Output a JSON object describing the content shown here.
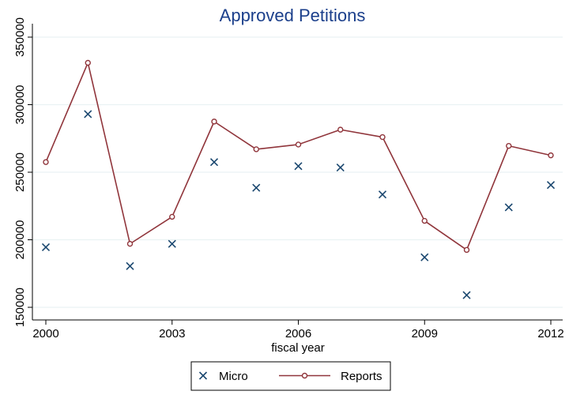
{
  "chart_data": {
    "type": "line",
    "title": "Approved Petitions",
    "xlabel": "fiscal year",
    "ylabel": "",
    "x": [
      2000,
      2001,
      2002,
      2003,
      2004,
      2005,
      2006,
      2007,
      2008,
      2009,
      2010,
      2011,
      2012
    ],
    "xticks": [
      "2000",
      "2003",
      "2006",
      "2009",
      "2012"
    ],
    "yticks": [
      "150000",
      "200000",
      "250000",
      "300000",
      "350000"
    ],
    "xlim": [
      2000,
      2012
    ],
    "ylim": [
      150000,
      350000
    ],
    "grid": true,
    "legend_position": "bottom",
    "series": [
      {
        "name": "Micro",
        "kind": "scatter",
        "marker": "x",
        "color": "#1a476f",
        "values": [
          194500,
          293000,
          180500,
          197000,
          257500,
          238500,
          254500,
          253500,
          233500,
          187000,
          159000,
          224000,
          240500
        ]
      },
      {
        "name": "Reports",
        "kind": "line",
        "marker": "circle",
        "color": "#90353b",
        "values": [
          257500,
          331000,
          197000,
          217000,
          287500,
          267000,
          270500,
          281500,
          276000,
          214000,
          192500,
          269500,
          262500
        ]
      }
    ]
  },
  "colors": {
    "background": "#ffffff",
    "grid": "#eaf2f3",
    "axis": "#000000",
    "title": "#1b3f8b"
  }
}
